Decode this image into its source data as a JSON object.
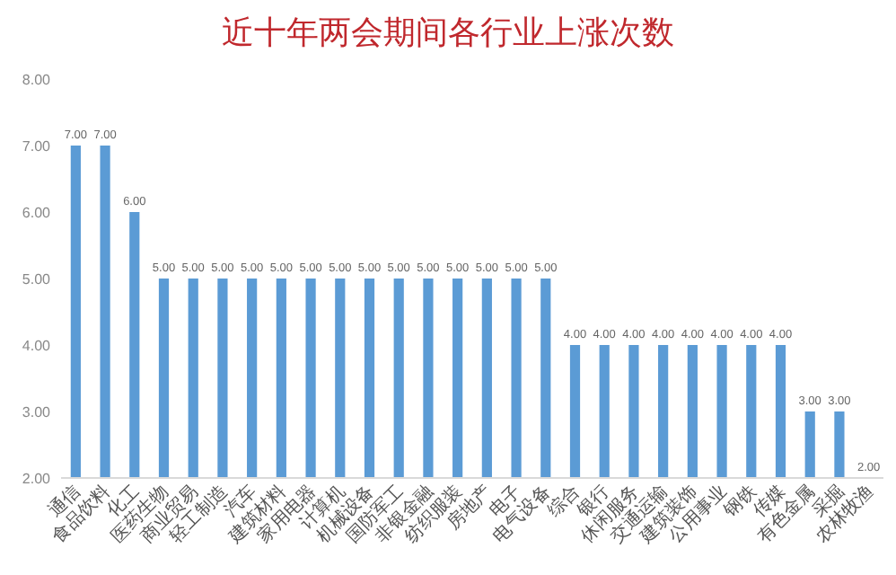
{
  "chart_data": {
    "type": "bar",
    "title": "近十年两会期间各行业上涨次数",
    "categories": [
      "通信",
      "食品饮料",
      "化工",
      "医药生物",
      "商业贸易",
      "轻工制造",
      "汽车",
      "建筑材料",
      "家用电器",
      "计算机",
      "机械设备",
      "国防军工",
      "非银金融",
      "纺织服装",
      "房地产",
      "电子",
      "电气设备",
      "综合",
      "银行",
      "休闲服务",
      "交通运输",
      "建筑装饰",
      "公用事业",
      "钢铁",
      "传媒",
      "有色金属",
      "采掘",
      "农林牧渔"
    ],
    "values": [
      7,
      7,
      6,
      5,
      5,
      5,
      5,
      5,
      5,
      5,
      5,
      5,
      5,
      5,
      5,
      5,
      5,
      4,
      4,
      4,
      4,
      4,
      4,
      4,
      4,
      3,
      3,
      2
    ],
    "value_labels": [
      "7.00",
      "7.00",
      "6.00",
      "5.00",
      "5.00",
      "5.00",
      "5.00",
      "5.00",
      "5.00",
      "5.00",
      "5.00",
      "5.00",
      "5.00",
      "5.00",
      "5.00",
      "5.00",
      "5.00",
      "4.00",
      "4.00",
      "4.00",
      "4.00",
      "4.00",
      "4.00",
      "4.00",
      "4.00",
      "3.00",
      "3.00",
      "2.00"
    ],
    "color": "#5b9bd5",
    "ylim": [
      2,
      8
    ],
    "yticks": [
      {
        "value": 2,
        "label": "2.00"
      },
      {
        "value": 3,
        "label": "3.00"
      },
      {
        "value": 4,
        "label": "4.00"
      },
      {
        "value": 5,
        "label": "5.00"
      },
      {
        "value": 6,
        "label": "6.00"
      },
      {
        "value": 7,
        "label": "7.00"
      },
      {
        "value": 8,
        "label": "8.00"
      }
    ],
    "grid": false
  }
}
